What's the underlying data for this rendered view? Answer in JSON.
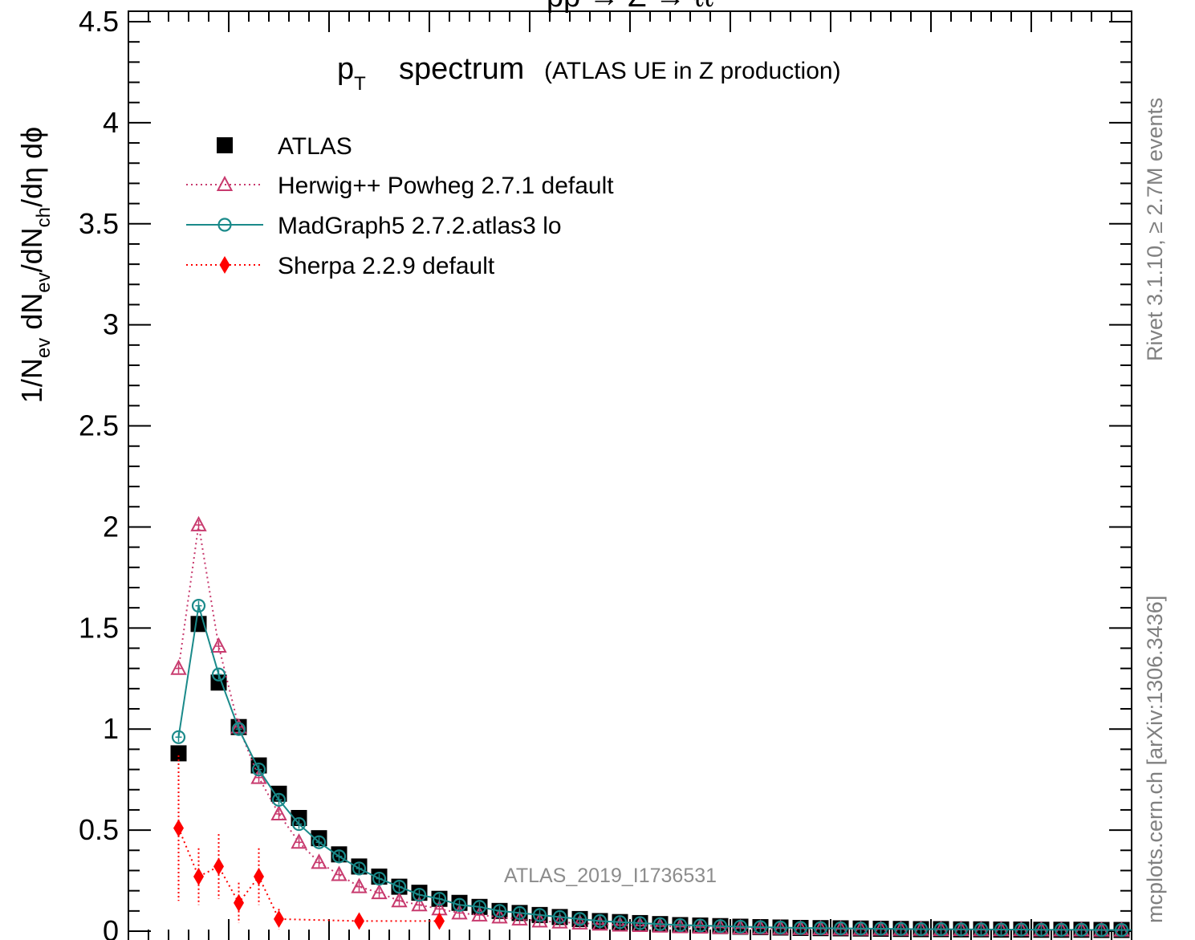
{
  "chart_data": {
    "type": "scatter",
    "top_caption": "pp → Z → ℓℓ",
    "subtitle_main": "spectrum",
    "subtitle_p": "p",
    "subtitle_sub": "T",
    "subtitle_extra": "(ATLAS UE in Z production)",
    "ylabel": "1/N_ev dN_ev/dN_ch/dη dϕ",
    "ylim": [
      0,
      4.5
    ],
    "xlim": [
      0.0,
      50.0
    ],
    "y_ticks": [
      "0",
      "0.5",
      "1",
      "1.5",
      "2",
      "2.5",
      "3",
      "3.5",
      "4",
      "4.5"
    ],
    "watermark": "ATLAS_2019_I1736531",
    "side_label_top": "Rivet 3.1.10, ≥ 2.7M events",
    "side_label_bottom": "mcplots.cern.ch [arXiv:1306.3436]",
    "legend_position": "top-left",
    "x": [
      2.5,
      3.5,
      4.5,
      5.5,
      6.5,
      7.5,
      8.5,
      9.5,
      10.5,
      11.5,
      12.5,
      13.5,
      14.5,
      15.5,
      16.5,
      17.5,
      18.5,
      19.5,
      20.5,
      21.5,
      22.5,
      23.5,
      24.5,
      25.5,
      26.5,
      27.5,
      28.5,
      29.5,
      30.5,
      31.5,
      32.5,
      33.5,
      34.5,
      35.5,
      36.5,
      37.5,
      38.5,
      39.5,
      40.5,
      41.5,
      42.5,
      43.5,
      44.5,
      45.5,
      46.5,
      47.5,
      48.5,
      49.5,
      50.5,
      51.5
    ],
    "series": [
      {
        "name": "ATLAS",
        "color": "#000000",
        "marker": "square",
        "line": "none",
        "values": [
          0.88,
          1.52,
          1.23,
          1.01,
          0.82,
          0.68,
          0.56,
          0.46,
          0.38,
          0.32,
          0.27,
          0.22,
          0.19,
          0.16,
          0.14,
          0.12,
          0.1,
          0.09,
          0.08,
          0.07,
          0.06,
          0.05,
          0.045,
          0.04,
          0.035,
          0.03,
          0.028,
          0.025,
          0.022,
          0.02,
          0.018,
          0.016,
          0.015,
          0.014,
          0.013,
          0.012,
          0.011,
          0.01,
          0.01,
          0.009,
          0.009,
          0.008,
          0.008,
          0.007,
          0.007,
          0.007,
          0.006,
          0.006,
          0.006,
          0.005
        ]
      },
      {
        "name": "Herwig++ Powheg 2.7.1 default",
        "color": "#c83a6e",
        "marker": "triangle-open",
        "line": "dotted",
        "values": [
          1.3,
          2.01,
          1.41,
          1.01,
          0.76,
          0.58,
          0.44,
          0.34,
          0.28,
          0.22,
          0.19,
          0.15,
          0.13,
          0.11,
          0.09,
          0.08,
          0.07,
          0.06,
          0.05,
          0.045,
          0.04,
          0.035,
          0.03,
          0.028,
          0.025,
          0.022,
          0.02,
          0.018,
          0.016,
          0.015,
          0.014,
          0.013,
          0.012,
          0.011,
          0.01,
          0.01,
          0.009,
          0.009,
          0.008,
          0.008,
          0.007,
          0.007,
          0.007,
          0.006,
          0.006,
          0.006,
          0.005,
          0.005,
          0.005,
          0.005
        ]
      },
      {
        "name": "MadGraph5 2.7.2.atlas3 lo",
        "color": "#1a8a8a",
        "marker": "circle-open",
        "line": "solid",
        "values": [
          0.96,
          1.61,
          1.27,
          1.0,
          0.8,
          0.65,
          0.53,
          0.44,
          0.37,
          0.31,
          0.26,
          0.22,
          0.18,
          0.16,
          0.13,
          0.12,
          0.1,
          0.09,
          0.08,
          0.07,
          0.06,
          0.05,
          0.045,
          0.04,
          0.035,
          0.03,
          0.028,
          0.025,
          0.022,
          0.02,
          0.018,
          0.016,
          0.015,
          0.014,
          0.013,
          0.012,
          0.011,
          0.01,
          0.01,
          0.009,
          0.009,
          0.008,
          0.008,
          0.007,
          0.007,
          0.007,
          0.006,
          0.006,
          0.006,
          0.005
        ]
      },
      {
        "name": "Sherpa 2.2.9 default",
        "color": "#ff0000",
        "marker": "diamond",
        "line": "dotted",
        "points": [
          {
            "x": 2.5,
            "y": 0.51,
            "err": 0.36
          },
          {
            "x": 3.5,
            "y": 0.27,
            "err": 0.14
          },
          {
            "x": 4.5,
            "y": 0.32,
            "err": 0.16
          },
          {
            "x": 5.5,
            "y": 0.14,
            "err": 0.1
          },
          {
            "x": 6.5,
            "y": 0.27,
            "err": 0.14
          },
          {
            "x": 7.5,
            "y": 0.06,
            "err": 0.05
          },
          {
            "x": 11.5,
            "y": 0.05,
            "err": 0.03
          },
          {
            "x": 15.5,
            "y": 0.05,
            "err": 0.03
          }
        ]
      }
    ]
  }
}
